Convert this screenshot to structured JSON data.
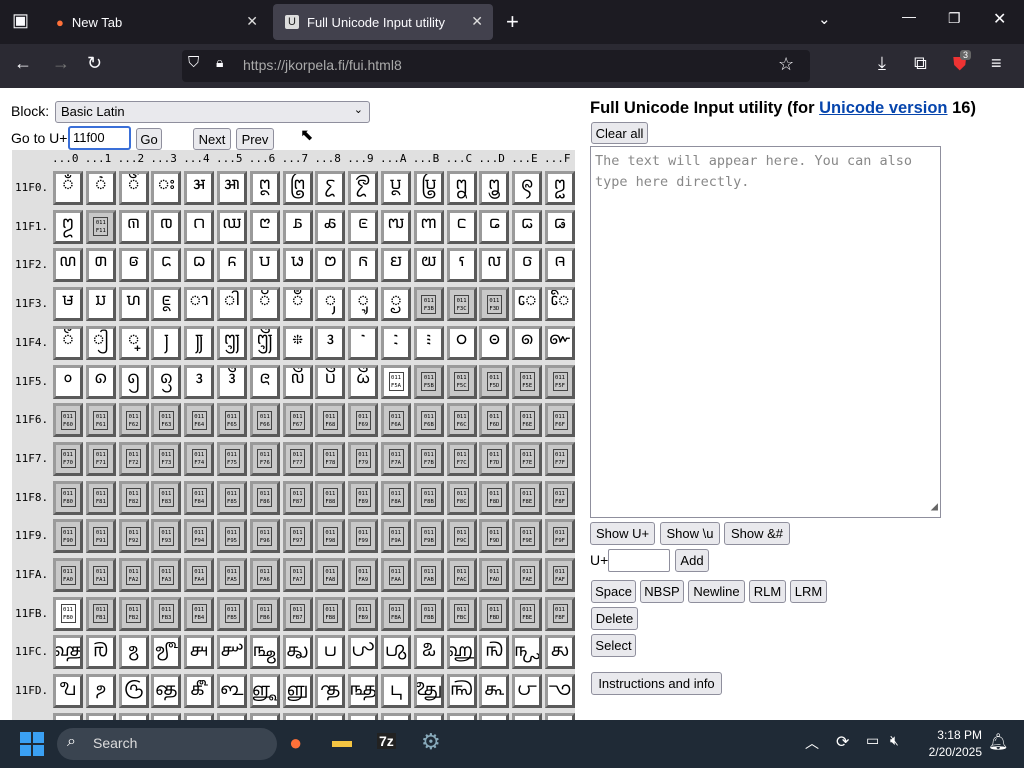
{
  "browser": {
    "tabs": [
      {
        "label": "New Tab",
        "active": false
      },
      {
        "label": "Full Unicode Input utility",
        "active": true
      }
    ],
    "url": "https://jkorpela.fi/fui.html8",
    "extension_badge": "3"
  },
  "controls": {
    "block_label": "Block:",
    "block_value": "Basic Latin",
    "goto_label": "Go to U+",
    "goto_value": "11f00",
    "go": "Go",
    "next": "Next",
    "prev": "Prev"
  },
  "right": {
    "title_prefix": "Full Unicode Input utility (for ",
    "title_link": "Unicode version",
    "title_suffix": " 16)",
    "clear_all": "Clear all",
    "textarea_placeholder": "The text will appear here. You can also type here directly.",
    "show_u": "Show U+",
    "show_backslash_u": "Show \\u",
    "show_amp": "Show &#",
    "uplus_label": "U+",
    "add": "Add",
    "space": "Space",
    "nbsp": "NBSP",
    "newline": "Newline",
    "rlm": "RLM",
    "lrm": "LRM",
    "delete": "Delete",
    "select": "Select",
    "instructions": "Instructions and info"
  },
  "grid": {
    "columns": [
      "...0",
      "...1",
      "...2",
      "...3",
      "...4",
      "...5",
      "...6",
      "...7",
      "...8",
      "...9",
      "...A",
      "...B",
      "...C",
      "...D",
      "...E",
      "...F"
    ],
    "rows": [
      {
        "label": "11F0.",
        "cells": [
          "𑼀",
          "𑼁",
          "𑼂",
          "𑼃",
          "𑼄",
          "𑼅",
          "𑼆",
          "𑼇",
          "𑼈",
          "𑼉",
          "𑼊",
          "𑼋",
          "𑼌",
          "𑼍",
          "𑼎",
          "𑼏"
        ]
      },
      {
        "label": "11F1.",
        "cells": [
          "𑼐",
          {
            "tofu": "F11",
            "gray": true
          },
          "𑼒",
          "𑼓",
          "𑼔",
          "𑼕",
          "𑼖",
          "𑼗",
          "𑼘",
          "𑼙",
          "𑼚",
          "𑼛",
          "𑼜",
          "𑼝",
          "𑼞",
          "𑼟"
        ]
      },
      {
        "label": "11F2.",
        "cells": [
          "𑼠",
          "𑼡",
          "𑼢",
          "𑼣",
          "𑼤",
          "𑼥",
          "𑼦",
          "𑼧",
          "𑼨",
          "𑼩",
          "𑼪",
          "𑼫",
          "𑼬",
          "𑼭",
          "𑼮",
          "𑼯"
        ]
      },
      {
        "label": "11F3.",
        "cells": [
          "𑼰",
          "𑼱",
          "𑼲",
          "𑼳",
          "𑼴",
          "𑼵",
          "𑼶",
          "𑼷",
          "𑼸",
          "𑼹",
          "𑼺",
          {
            "tofu": "F3B",
            "gray": true
          },
          {
            "tofu": "F3C",
            "gray": true
          },
          {
            "tofu": "F3D",
            "gray": true
          },
          "𑼾",
          "𑼿"
        ]
      },
      {
        "label": "11F4.",
        "cells": [
          "𑽀",
          "𑽁",
          "𑽂",
          "𑽃",
          "𑽄",
          "𑽅",
          "𑽆",
          "𑽇",
          "𑽈",
          "𑽉",
          "𑽊",
          "𑽋",
          "𑽌",
          "𑽍",
          "𑽎",
          "𑽏"
        ]
      },
      {
        "label": "11F5.",
        "cells": [
          "𑽐",
          "𑽑",
          "𑽒",
          "𑽓",
          "𑽔",
          "𑽕",
          "𑽖",
          "𑽗",
          "𑽘",
          "𑽙",
          {
            "tofu": "F5A",
            "gray": false
          },
          {
            "tofu": "F5B",
            "gray": true
          },
          {
            "tofu": "F5C",
            "gray": true
          },
          {
            "tofu": "F5D",
            "gray": true
          },
          {
            "tofu": "F5E",
            "gray": true
          },
          {
            "tofu": "F5F",
            "gray": true
          }
        ]
      },
      {
        "label": "11F6.",
        "cells": [
          {
            "tofu": "F60",
            "gray": true
          },
          {
            "tofu": "F61",
            "gray": true
          },
          {
            "tofu": "F62",
            "gray": true
          },
          {
            "tofu": "F63",
            "gray": true
          },
          {
            "tofu": "F64",
            "gray": true
          },
          {
            "tofu": "F65",
            "gray": true
          },
          {
            "tofu": "F66",
            "gray": true
          },
          {
            "tofu": "F67",
            "gray": true
          },
          {
            "tofu": "F68",
            "gray": true
          },
          {
            "tofu": "F69",
            "gray": true
          },
          {
            "tofu": "F6A",
            "gray": true
          },
          {
            "tofu": "F6B",
            "gray": true
          },
          {
            "tofu": "F6C",
            "gray": true
          },
          {
            "tofu": "F6D",
            "gray": true
          },
          {
            "tofu": "F6E",
            "gray": true
          },
          {
            "tofu": "F6F",
            "gray": true
          }
        ]
      },
      {
        "label": "11F7.",
        "cells": [
          {
            "tofu": "F70",
            "gray": true
          },
          {
            "tofu": "F71",
            "gray": true
          },
          {
            "tofu": "F72",
            "gray": true
          },
          {
            "tofu": "F73",
            "gray": true
          },
          {
            "tofu": "F74",
            "gray": true
          },
          {
            "tofu": "F75",
            "gray": true
          },
          {
            "tofu": "F76",
            "gray": true
          },
          {
            "tofu": "F77",
            "gray": true
          },
          {
            "tofu": "F78",
            "gray": true
          },
          {
            "tofu": "F79",
            "gray": true
          },
          {
            "tofu": "F7A",
            "gray": true
          },
          {
            "tofu": "F7B",
            "gray": true
          },
          {
            "tofu": "F7C",
            "gray": true
          },
          {
            "tofu": "F7D",
            "gray": true
          },
          {
            "tofu": "F7E",
            "gray": true
          },
          {
            "tofu": "F7F",
            "gray": true
          }
        ]
      },
      {
        "label": "11F8.",
        "cells": [
          {
            "tofu": "F80",
            "gray": true
          },
          {
            "tofu": "F81",
            "gray": true
          },
          {
            "tofu": "F82",
            "gray": true
          },
          {
            "tofu": "F83",
            "gray": true
          },
          {
            "tofu": "F84",
            "gray": true
          },
          {
            "tofu": "F85",
            "gray": true
          },
          {
            "tofu": "F86",
            "gray": true
          },
          {
            "tofu": "F87",
            "gray": true
          },
          {
            "tofu": "F88",
            "gray": true
          },
          {
            "tofu": "F89",
            "gray": true
          },
          {
            "tofu": "F8A",
            "gray": true
          },
          {
            "tofu": "F8B",
            "gray": true
          },
          {
            "tofu": "F8C",
            "gray": true
          },
          {
            "tofu": "F8D",
            "gray": true
          },
          {
            "tofu": "F8E",
            "gray": true
          },
          {
            "tofu": "F8F",
            "gray": true
          }
        ]
      },
      {
        "label": "11F9.",
        "cells": [
          {
            "tofu": "F90",
            "gray": true
          },
          {
            "tofu": "F91",
            "gray": true
          },
          {
            "tofu": "F92",
            "gray": true
          },
          {
            "tofu": "F93",
            "gray": true
          },
          {
            "tofu": "F94",
            "gray": true
          },
          {
            "tofu": "F95",
            "gray": true
          },
          {
            "tofu": "F96",
            "gray": true
          },
          {
            "tofu": "F97",
            "gray": true
          },
          {
            "tofu": "F98",
            "gray": true
          },
          {
            "tofu": "F99",
            "gray": true
          },
          {
            "tofu": "F9A",
            "gray": true
          },
          {
            "tofu": "F9B",
            "gray": true
          },
          {
            "tofu": "F9C",
            "gray": true
          },
          {
            "tofu": "F9D",
            "gray": true
          },
          {
            "tofu": "F9E",
            "gray": true
          },
          {
            "tofu": "F9F",
            "gray": true
          }
        ]
      },
      {
        "label": "11FA.",
        "cells": [
          {
            "tofu": "FA0",
            "gray": true
          },
          {
            "tofu": "FA1",
            "gray": true
          },
          {
            "tofu": "FA2",
            "gray": true
          },
          {
            "tofu": "FA3",
            "gray": true
          },
          {
            "tofu": "FA4",
            "gray": true
          },
          {
            "tofu": "FA5",
            "gray": true
          },
          {
            "tofu": "FA6",
            "gray": true
          },
          {
            "tofu": "FA7",
            "gray": true
          },
          {
            "tofu": "FA8",
            "gray": true
          },
          {
            "tofu": "FA9",
            "gray": true
          },
          {
            "tofu": "FAA",
            "gray": true
          },
          {
            "tofu": "FAB",
            "gray": true
          },
          {
            "tofu": "FAC",
            "gray": true
          },
          {
            "tofu": "FAD",
            "gray": true
          },
          {
            "tofu": "FAE",
            "gray": true
          },
          {
            "tofu": "FAF",
            "gray": true
          }
        ]
      },
      {
        "label": "11FB.",
        "cells": [
          {
            "tofu": "FB0",
            "gray": false
          },
          {
            "tofu": "FB1",
            "gray": true
          },
          {
            "tofu": "FB2",
            "gray": true
          },
          {
            "tofu": "FB3",
            "gray": true
          },
          {
            "tofu": "FB4",
            "gray": true
          },
          {
            "tofu": "FB5",
            "gray": true
          },
          {
            "tofu": "FB6",
            "gray": true
          },
          {
            "tofu": "FB7",
            "gray": true
          },
          {
            "tofu": "FB8",
            "gray": true
          },
          {
            "tofu": "FB9",
            "gray": true
          },
          {
            "tofu": "FBA",
            "gray": true
          },
          {
            "tofu": "FBB",
            "gray": true
          },
          {
            "tofu": "FBC",
            "gray": true
          },
          {
            "tofu": "FBD",
            "gray": true
          },
          {
            "tofu": "FBE",
            "gray": true
          },
          {
            "tofu": "FBF",
            "gray": true
          }
        ]
      },
      {
        "label": "11FC.",
        "cells": [
          "𑿀",
          "𑿁",
          "𑿂",
          "𑿃",
          "𑿄",
          "𑿅",
          "𑿆",
          "𑿇",
          "𑿈",
          "𑿉",
          "𑿊",
          "𑿋",
          "𑿌",
          "𑿍",
          "𑿎",
          "𑿏"
        ]
      },
      {
        "label": "11FD.",
        "cells": [
          "𑿐",
          "𑿑",
          "𑿒",
          "𑿓",
          "𑿔",
          "𑿕",
          "𑿖",
          "𑿗",
          "𑿘",
          "𑿙",
          "𑿚",
          "𑿛",
          "𑿜",
          "𑿝",
          "𑿞",
          "𑿟"
        ]
      }
    ]
  },
  "taskbar": {
    "search": "Search",
    "time": "3:18 PM",
    "date": "2/20/2025"
  }
}
